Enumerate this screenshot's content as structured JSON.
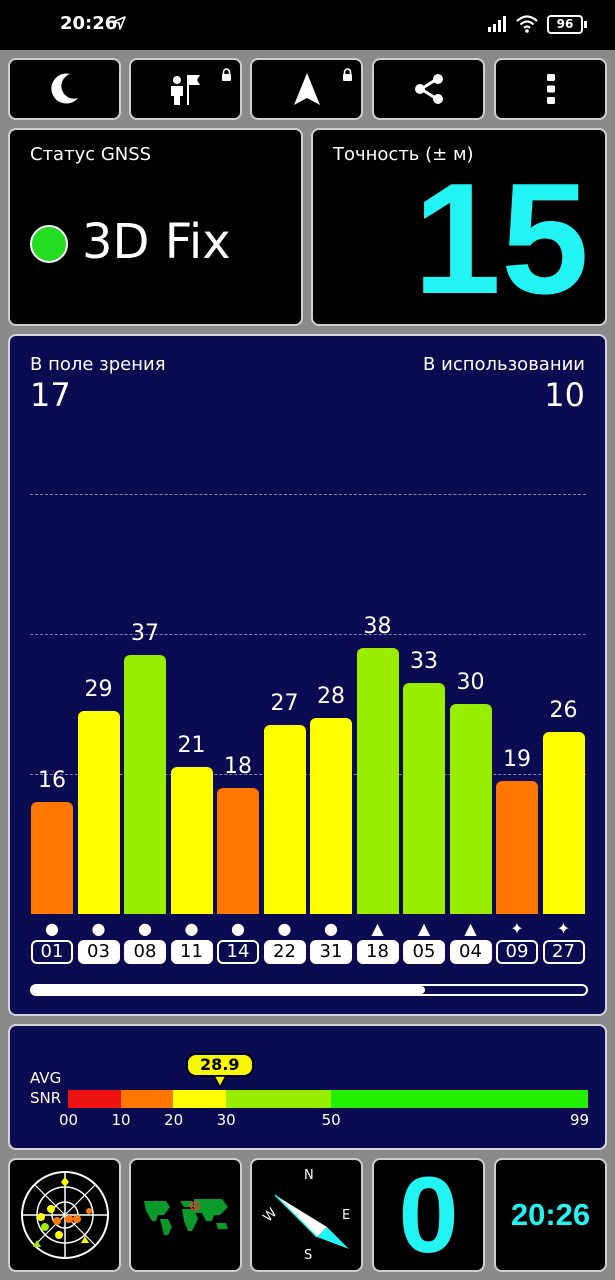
{
  "status_bar": {
    "time": "20:26",
    "battery": "96"
  },
  "toolbar": {
    "buttons": [
      {
        "name": "night-mode-button",
        "icon": "moon-icon"
      },
      {
        "name": "tools-button",
        "icon": "person-flag-icon"
      },
      {
        "name": "navigation-button",
        "icon": "navigation-arrow-icon"
      },
      {
        "name": "share-button",
        "icon": "share-icon"
      },
      {
        "name": "more-button",
        "icon": "more-vertical-icon"
      }
    ]
  },
  "gnss": {
    "label": "Статус GNSS",
    "value": "3D Fix",
    "indicator_color": "#22dd22"
  },
  "accuracy": {
    "label": "Точность (± м)",
    "value": "15",
    "color": "#22f4f4"
  },
  "satellites": {
    "in_view_label": "В поле зрения",
    "in_view": "17",
    "in_use_label": "В использовании",
    "in_use": "10",
    "scroll_fraction": 0.71
  },
  "chart_data": {
    "type": "bar",
    "categories": [
      "01",
      "03",
      "08",
      "11",
      "14",
      "22",
      "31",
      "18",
      "05",
      "04",
      "09",
      "27"
    ],
    "values": [
      16,
      29,
      37,
      21,
      18,
      27,
      28,
      38,
      33,
      30,
      19,
      26
    ],
    "used": [
      false,
      true,
      true,
      true,
      false,
      true,
      true,
      true,
      true,
      true,
      false,
      false
    ],
    "constellation_symbols": [
      "●",
      "●",
      "●",
      "●",
      "●",
      "●",
      "●",
      "▲",
      "▲",
      "▲",
      "✦",
      "✦"
    ],
    "ylim": [
      0,
      60
    ],
    "gridlines": [
      20,
      40,
      60
    ],
    "color_scale": {
      "red": "#ee1111",
      "orange": "#ff7700",
      "yellow": "#ffff00",
      "lime": "#99ee00",
      "green": "#22ee00"
    }
  },
  "snr": {
    "label_line1": "AVG",
    "label_line2": "SNR",
    "avg": "28.9",
    "avg_value": 28.9,
    "ticks": [
      "00",
      "10",
      "20",
      "30",
      "50",
      "99"
    ],
    "tick_values": [
      0,
      10,
      20,
      30,
      50,
      99
    ],
    "segments": [
      {
        "from": 0,
        "to": 10,
        "color": "#ee1111"
      },
      {
        "from": 10,
        "to": 20,
        "color": "#ff7700"
      },
      {
        "from": 20,
        "to": 30,
        "color": "#ffff00"
      },
      {
        "from": 30,
        "to": 50,
        "color": "#99ee00"
      },
      {
        "from": 50,
        "to": 99,
        "color": "#22ee00"
      }
    ]
  },
  "bottom": {
    "radar_icon": "sky-radar-icon",
    "map_icon": "world-map-icon",
    "compass": {
      "n": "N",
      "e": "E",
      "s": "S",
      "w": "W"
    },
    "speed": "0",
    "speed_color": "#22f4f4",
    "clock": "20:26",
    "clock_color": "#22f4f4"
  }
}
